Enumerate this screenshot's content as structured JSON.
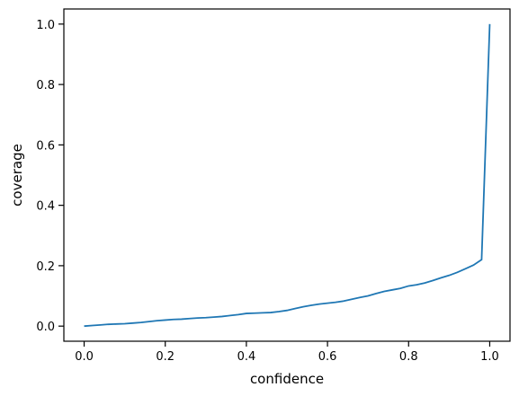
{
  "chart_data": {
    "type": "line",
    "xlabel": "confidence",
    "ylabel": "coverage",
    "series": [
      {
        "name": "coverage",
        "color": "#1f77b4",
        "x": [
          0,
          0.02,
          0.04,
          0.06,
          0.08,
          0.1,
          0.12,
          0.14,
          0.16,
          0.18,
          0.2,
          0.22,
          0.24,
          0.26,
          0.28,
          0.3,
          0.32,
          0.34,
          0.36,
          0.38,
          0.4,
          0.42,
          0.44,
          0.46,
          0.48,
          0.5,
          0.52,
          0.54,
          0.56,
          0.58,
          0.6,
          0.62,
          0.64,
          0.66,
          0.68,
          0.7,
          0.72,
          0.74,
          0.76,
          0.78,
          0.8,
          0.82,
          0.84,
          0.86,
          0.88,
          0.9,
          0.92,
          0.94,
          0.96,
          0.98,
          1.0
        ],
        "values": [
          0,
          0.002,
          0.004,
          0.006,
          0.007,
          0.008,
          0.01,
          0.012,
          0.015,
          0.018,
          0.02,
          0.022,
          0.023,
          0.025,
          0.027,
          0.028,
          0.03,
          0.032,
          0.035,
          0.038,
          0.042,
          0.043,
          0.044,
          0.045,
          0.048,
          0.052,
          0.058,
          0.064,
          0.069,
          0.073,
          0.076,
          0.079,
          0.083,
          0.089,
          0.095,
          0.1,
          0.108,
          0.115,
          0.12,
          0.125,
          0.133,
          0.137,
          0.143,
          0.151,
          0.16,
          0.168,
          0.178,
          0.19,
          0.202,
          0.22,
          1.0
        ]
      }
    ],
    "xlim": [
      -0.05,
      1.05
    ],
    "ylim": [
      -0.05,
      1.05
    ],
    "xticks": [
      {
        "value": 0,
        "label": "0.0"
      },
      0.2,
      0.4,
      0.6,
      0.8,
      {
        "value": 1,
        "label": "1.0"
      }
    ],
    "yticks": [
      {
        "value": 0,
        "label": "0.0"
      },
      0.2,
      0.4,
      0.6,
      0.8,
      {
        "value": 1,
        "label": "1.0"
      }
    ],
    "grid": false
  }
}
